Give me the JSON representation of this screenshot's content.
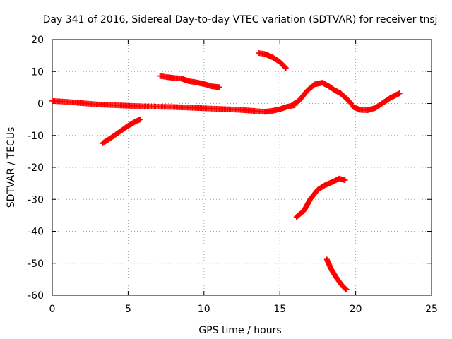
{
  "chart_data": {
    "type": "scatter",
    "title": "Day 341 of 2016, Sidereal Day-to-day VTEC variation (SDTVAR) for receiver tnsj",
    "xlabel": "GPS time / hours",
    "ylabel": "SDTVAR / TECUs",
    "xlim": [
      0,
      25
    ],
    "ylim": [
      -60,
      20
    ],
    "xticks": [
      0,
      5,
      10,
      15,
      20,
      25
    ],
    "yticks": [
      -60,
      -50,
      -40,
      -30,
      -20,
      -10,
      0,
      10,
      20
    ],
    "grid": true,
    "marker": "+",
    "color": "#ff0000",
    "series": [
      {
        "name": "arc-main-low",
        "points": [
          [
            0,
            0.8
          ],
          [
            1,
            0.5
          ],
          [
            2,
            0.1
          ],
          [
            3,
            -0.3
          ],
          [
            4,
            -0.5
          ],
          [
            5,
            -0.7
          ],
          [
            6,
            -0.9
          ],
          [
            7,
            -1.0
          ],
          [
            8,
            -1.1
          ],
          [
            9,
            -1.3
          ],
          [
            10,
            -1.5
          ],
          [
            11,
            -1.7
          ],
          [
            12,
            -1.9
          ],
          [
            13,
            -2.2
          ],
          [
            14,
            -2.6
          ],
          [
            14.5,
            -2.3
          ],
          [
            15,
            -1.8
          ],
          [
            15.5,
            -1.0
          ],
          [
            16,
            -0.5
          ]
        ]
      },
      {
        "name": "arc-early-rise",
        "points": [
          [
            3.3,
            -12.5
          ],
          [
            3.8,
            -11
          ],
          [
            4.4,
            -9
          ],
          [
            5,
            -7
          ],
          [
            5.5,
            -5.6
          ],
          [
            5.8,
            -5
          ]
        ]
      },
      {
        "name": "arc-morning-high",
        "points": [
          [
            7.1,
            8.6
          ],
          [
            7.5,
            8.3
          ],
          [
            8,
            8
          ],
          [
            8.5,
            7.8
          ],
          [
            9,
            7
          ],
          [
            9.5,
            6.6
          ],
          [
            10,
            6.1
          ],
          [
            10.5,
            5.4
          ],
          [
            11,
            5.1
          ]
        ]
      },
      {
        "name": "arc-peak",
        "points": [
          [
            13.6,
            15.8
          ],
          [
            14,
            15.5
          ],
          [
            14.5,
            14.5
          ],
          [
            15,
            13
          ],
          [
            15.4,
            11.1
          ]
        ]
      },
      {
        "name": "arc-evening",
        "points": [
          [
            15.8,
            -0.5
          ],
          [
            16.3,
            1
          ],
          [
            16.8,
            4
          ],
          [
            17.3,
            6
          ],
          [
            17.8,
            6.5
          ],
          [
            18.2,
            5.5
          ],
          [
            18.6,
            4.2
          ],
          [
            19,
            3.2
          ],
          [
            19.4,
            1.5
          ],
          [
            19.7,
            0
          ]
        ]
      },
      {
        "name": "arc-late",
        "points": [
          [
            19.8,
            -1
          ],
          [
            20.3,
            -2
          ],
          [
            20.8,
            -2.1
          ],
          [
            21.3,
            -1.4
          ],
          [
            21.8,
            0.2
          ],
          [
            22.3,
            1.8
          ],
          [
            22.9,
            3.2
          ]
        ]
      },
      {
        "name": "arc-deep-rise",
        "points": [
          [
            16.1,
            -35.5
          ],
          [
            16.6,
            -33.5
          ],
          [
            17,
            -30
          ],
          [
            17.5,
            -27
          ],
          [
            18,
            -25.5
          ],
          [
            18.5,
            -24.5
          ],
          [
            18.9,
            -23.5
          ],
          [
            19.3,
            -24
          ]
        ]
      },
      {
        "name": "arc-deep-drop",
        "points": [
          [
            18.1,
            -48.8
          ],
          [
            18.4,
            -52
          ],
          [
            18.8,
            -55
          ],
          [
            19.2,
            -57.5
          ],
          [
            19.4,
            -58.2
          ]
        ]
      }
    ]
  }
}
